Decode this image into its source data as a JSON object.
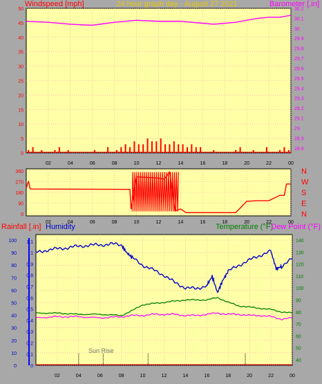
{
  "top": {
    "left_label": "Windspeed [mph]",
    "title": "24 hour graph day - August 27 2021",
    "right_label": "Barometer [.in]",
    "y_left_ticks": [
      "0",
      "5",
      "10",
      "15",
      "20",
      "25",
      "30",
      "35",
      "40",
      "45",
      "50"
    ],
    "y_right_ticks": [
      "28.8",
      "28.9",
      "29",
      "29.1",
      "29.2",
      "29.3",
      "29.4",
      "29.5",
      "29.6",
      "29.7",
      "29.8",
      "29.9",
      "30",
      "30.1",
      "30.2"
    ],
    "x_ticks": [
      "02",
      "04",
      "06",
      "08",
      "10",
      "12",
      "14",
      "16",
      "18",
      "20",
      "22",
      "00"
    ]
  },
  "middle": {
    "y_ticks": [
      "0",
      "90",
      "180",
      "270",
      "360"
    ],
    "dir_labels": [
      "N",
      "W",
      "S",
      "E",
      "N"
    ],
    "x_ticks": [
      "02",
      "04",
      "06",
      "08",
      "10",
      "12",
      "14",
      "16",
      "18",
      "20",
      "22",
      "00"
    ]
  },
  "bottom": {
    "rain_label": "Rainfall [.in]",
    "hum_label": "Humidity",
    "temp_label": "Temperature (°F)",
    "dew_label": "Dew Point (°F)",
    "y_hum_ticks": [
      "0",
      "10",
      "20",
      "30",
      "40",
      "50",
      "60",
      "70",
      "80",
      "90",
      "100"
    ],
    "y_rain_ticks": [
      "0",
      "0.1",
      "0.2",
      "0.3",
      "0.4",
      "0.5",
      "0.6",
      "0.7",
      "0.8",
      "0.9",
      "1",
      "1.1"
    ],
    "y_temp_ticks": [
      "40",
      "50",
      "60",
      "70",
      "80",
      "90",
      "100",
      "110",
      "120",
      "130",
      "140"
    ],
    "x_ticks": [
      "02",
      "04",
      "06",
      "08",
      "10",
      "12",
      "14",
      "16",
      "18",
      "20",
      "22",
      "00"
    ],
    "sunrise_label": "Sun Rise"
  },
  "colors": {
    "bg": "#ffffa8",
    "wind": "#ff0000",
    "gust": "#0000ff",
    "avg": "#008000",
    "baro": "#ff00ff",
    "dir": "#ff0000",
    "humidity": "#0000c8",
    "temperature": "#008000",
    "dewpoint": "#ff00ff"
  },
  "chart_data": [
    {
      "type": "line",
      "title": "24 hour graph day - August 27 2021",
      "series": [
        {
          "name": "Windspeed [mph]",
          "x": [
            0.2,
            0.6,
            1.0,
            1.4,
            1.8,
            2.2,
            2.6,
            3.0,
            3.4,
            3.8,
            4.2,
            4.6,
            5.0,
            5.4,
            5.8,
            6.2,
            6.6,
            7.0,
            7.4,
            7.8,
            8.2,
            8.6,
            9.0,
            9.4,
            9.8,
            10.2,
            10.6,
            11.0,
            11.4,
            11.8,
            12.2,
            12.6,
            13.0,
            13.4,
            13.8,
            14.2,
            14.6,
            15.0,
            15.4,
            15.8,
            16.2,
            16.6,
            17.0,
            17.4,
            17.8,
            18.2,
            18.6,
            19.0,
            19.4,
            19.8,
            20.2,
            20.6,
            21.0,
            21.4,
            21.8,
            22.2,
            22.6,
            23.0,
            23.4,
            23.8
          ],
          "values": [
            1,
            2,
            0,
            1,
            0,
            0,
            1,
            2,
            0,
            1,
            0,
            0,
            0,
            0,
            0,
            1,
            0,
            0,
            2,
            0,
            1,
            2,
            3,
            2,
            4,
            3,
            3,
            5,
            4,
            4,
            5,
            3,
            3,
            4,
            3,
            3,
            2,
            3,
            2,
            2,
            0,
            0,
            1,
            0,
            0,
            0,
            0,
            1,
            2,
            0,
            0,
            1,
            0,
            0,
            2,
            0,
            0,
            1,
            2,
            1
          ]
        },
        {
          "name": "Barometer [.in]",
          "x": [
            0,
            2,
            4,
            6,
            8,
            10,
            12,
            14,
            15,
            16,
            17,
            18,
            19,
            20,
            21,
            22,
            23,
            24
          ],
          "values": [
            30.07,
            30.06,
            30.04,
            30.03,
            30.06,
            30.08,
            30.07,
            30.07,
            30.06,
            30.05,
            30.04,
            30.05,
            30.06,
            30.08,
            30.1,
            30.11,
            30.11,
            30.13
          ]
        }
      ],
      "x_ticks": [
        "02",
        "04",
        "06",
        "08",
        "10",
        "12",
        "14",
        "16",
        "18",
        "20",
        "22",
        "00"
      ],
      "ylim": [
        0,
        50
      ]
    },
    {
      "type": "line",
      "series": [
        {
          "name": "Wind Direction",
          "x": [
            0,
            0.2,
            0.35,
            0.5,
            9.4,
            9.5,
            10,
            12,
            12.5,
            13,
            13.5,
            14,
            14.5,
            15.5,
            16,
            17,
            18,
            19,
            20,
            21,
            21.5,
            22,
            23,
            23.4,
            23.6,
            24
          ],
          "values": [
            213,
            275,
            210,
            208,
            205,
            40,
            310,
            300,
            290,
            350,
            25,
            40,
            10,
            10,
            10,
            10,
            10,
            10,
            105,
            110,
            110,
            110,
            155,
            155,
            250,
            250
          ]
        }
      ],
      "ylim": [
        0,
        360
      ]
    },
    {
      "type": "line",
      "series": [
        {
          "name": "Humidity",
          "x": [
            0,
            1,
            2,
            3,
            4,
            5,
            6,
            7,
            8,
            8.5,
            9,
            10,
            11,
            12,
            13,
            14,
            15,
            16,
            16.5,
            17,
            17.5,
            18,
            19,
            20,
            21,
            22,
            22.5,
            23,
            24
          ],
          "values": [
            90,
            92,
            93,
            94,
            95,
            96,
            96,
            97,
            96,
            90,
            86,
            80,
            76,
            72,
            66,
            62,
            61,
            64,
            71,
            58,
            68,
            75,
            80,
            84,
            88,
            91,
            77,
            79,
            85
          ]
        },
        {
          "name": "Temperature (°F)",
          "x": [
            0,
            2,
            4,
            6,
            8,
            9,
            10,
            11,
            12,
            13,
            14,
            15,
            16,
            17,
            18,
            19,
            20,
            21,
            22,
            23,
            24
          ],
          "values": [
            79,
            79,
            78,
            78,
            77,
            81,
            86,
            87,
            88,
            89,
            90,
            90,
            90,
            92,
            88,
            85,
            84,
            83,
            82,
            80,
            79
          ]
        },
        {
          "name": "Dew Point (°F)",
          "x": [
            0,
            2,
            4,
            6,
            8,
            9,
            10,
            11,
            12,
            13,
            14,
            15,
            16,
            17,
            18,
            19,
            20,
            21,
            22,
            23,
            24
          ],
          "values": [
            75,
            76,
            76,
            75,
            76,
            77,
            77,
            78,
            78,
            78,
            77,
            77,
            78,
            79,
            78,
            78,
            77,
            77,
            76,
            74,
            75
          ]
        },
        {
          "name": "Rainfall [.in]",
          "x": [
            0,
            24
          ],
          "values": [
            0,
            0
          ]
        }
      ],
      "ylim": [
        0,
        100
      ]
    }
  ]
}
